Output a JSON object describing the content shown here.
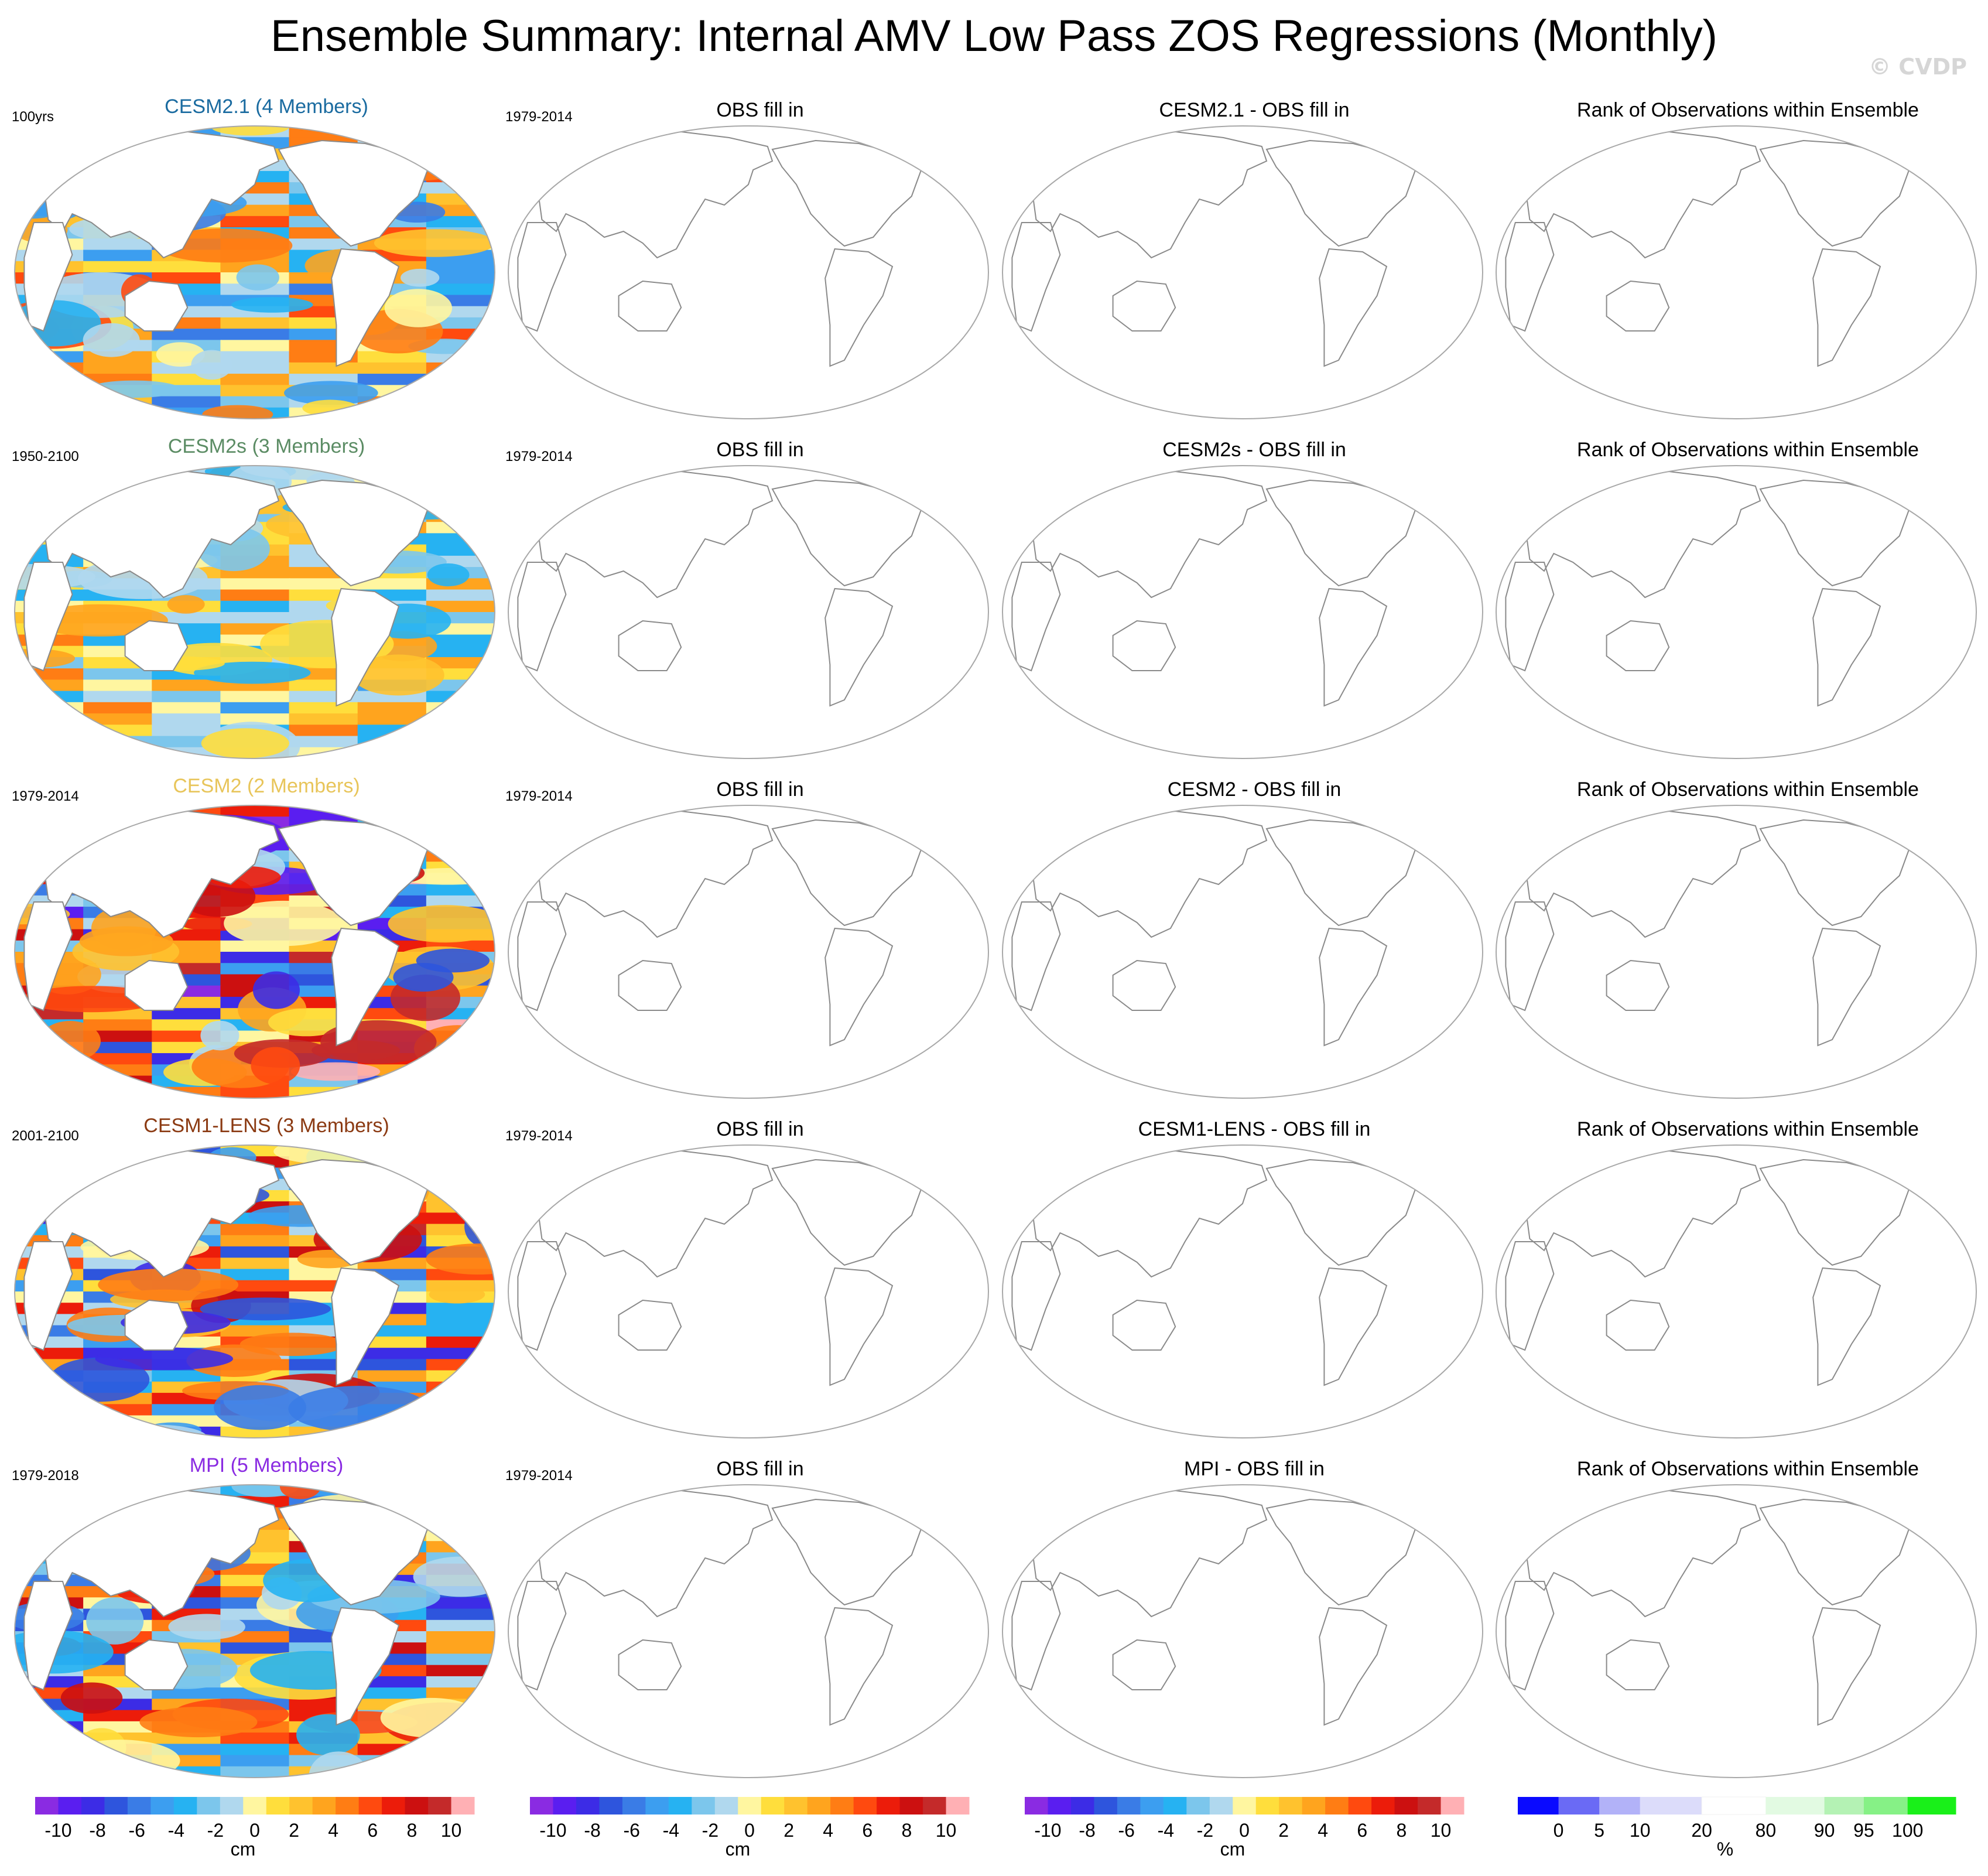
{
  "title": "Ensemble Summary: Internal AMV Low Pass ZOS Regressions (Monthly)",
  "watermark": "© CVDP",
  "colors": {
    "land": "#ffffff",
    "coast": "#8a8a8a",
    "frame": "#a8a8a8",
    "main_scale": [
      "#8a2be2",
      "#5a1ef0",
      "#3c2ce6",
      "#2e55dd",
      "#3a7ce6",
      "#3c9ef0",
      "#26b2f2",
      "#7cc6ec",
      "#b0d8ee",
      "#fff6a0",
      "#ffde3c",
      "#ffc22e",
      "#ffa41e",
      "#ff7d14",
      "#ff4a0f",
      "#ec1c0a",
      "#cc1010",
      "#c42a2a",
      "#ffb0b4"
    ],
    "rank_scale": [
      "#0a0aff",
      "#6a6af5",
      "#b2b2f8",
      "#dcdcfa",
      "#ffffff",
      "#e2fae2",
      "#b4f2b4",
      "#86f186",
      "#19f019"
    ]
  },
  "chart_data": {
    "type": "heatmap",
    "title": "Ensemble Summary: Internal AMV Low Pass ZOS Regressions (Monthly)",
    "rows": [
      {
        "model": "CESM2.1 (4 Members)",
        "model_color": "#1a6ba0",
        "period": "100yrs",
        "obs_period": "1979-2014",
        "obs_title": "OBS fill in",
        "diff_title": "CESM2.1 - OBS fill in",
        "rank_title": "Rank of Observations within Ensemble",
        "intensity": 0.55
      },
      {
        "model": "CESM2s (3 Members)",
        "model_color": "#5b8c64",
        "period": "1950-2100",
        "obs_period": "1979-2014",
        "obs_title": "OBS fill in",
        "diff_title": "CESM2s - OBS fill in",
        "rank_title": "Rank of Observations within Ensemble",
        "intensity": 0.42
      },
      {
        "model": "CESM2 (2 Members)",
        "model_color": "#e8c55a",
        "period": "1979-2014",
        "obs_period": "1979-2014",
        "obs_title": "OBS fill in",
        "diff_title": "CESM2 - OBS fill in",
        "rank_title": "Rank of Observations within Ensemble",
        "intensity": 1.0
      },
      {
        "model": "CESM1-LENS (3 Members)",
        "model_color": "#8b3a12",
        "period": "2001-2100",
        "obs_period": "1979-2014",
        "obs_title": "OBS fill in",
        "diff_title": "CESM1-LENS - OBS fill in",
        "rank_title": "Rank of Observations within Ensemble",
        "intensity": 0.85
      },
      {
        "model": "MPI (5 Members)",
        "model_color": "#8a2be2",
        "period": "1979-2018",
        "obs_period": "1979-2014",
        "obs_title": "OBS fill in",
        "diff_title": "MPI - OBS fill in",
        "rank_title": "Rank of Observations within Ensemble",
        "intensity": 0.8
      }
    ],
    "colorbar_main": {
      "unit": "cm",
      "levels": [
        -10,
        -9,
        -8,
        -7,
        -6,
        -5,
        -4,
        -3,
        -2,
        -1,
        0,
        1,
        2,
        3,
        4,
        5,
        6,
        7,
        8,
        9,
        10
      ],
      "tick_labels": [
        "-10",
        "-8",
        "-6",
        "-4",
        "-2",
        "0",
        "2",
        "4",
        "6",
        "8",
        "10"
      ]
    },
    "colorbar_rank": {
      "unit": "%",
      "levels": [
        0,
        5,
        10,
        20,
        80,
        90,
        95,
        100
      ],
      "tick_labels": [
        "0",
        "5",
        "10",
        "20",
        "80",
        "90",
        "95",
        "100"
      ]
    }
  }
}
